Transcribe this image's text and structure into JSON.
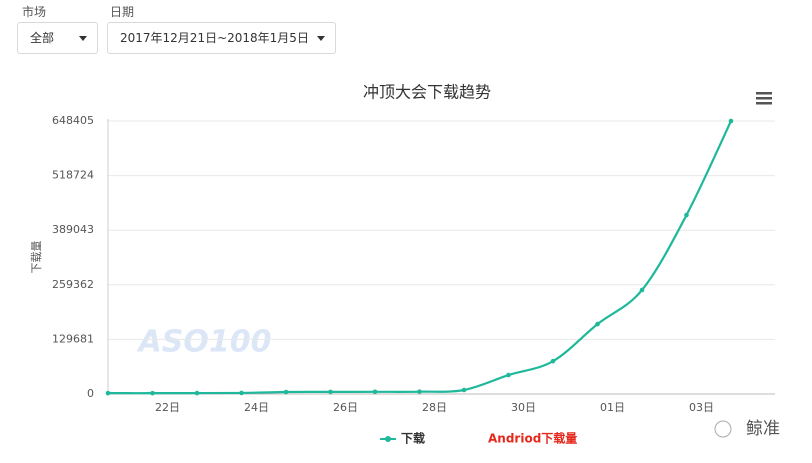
{
  "filters": {
    "market_label": "市场",
    "market_value": "全部",
    "date_label": "日期",
    "date_value": "2017年12月21日~2018年1月5日"
  },
  "chart_data": {
    "type": "line",
    "title": "冲顶大会下载趋势",
    "y_label": "下载量",
    "categories": [
      null,
      "22日",
      null,
      "24日",
      null,
      "26日",
      null,
      "28日",
      null,
      "30日",
      null,
      "01日",
      null,
      "03日",
      null
    ],
    "series": [
      {
        "name": "下载",
        "color": "#1fb89a",
        "values": [
          2000,
          2000,
          2200,
          2500,
          4700,
          5000,
          5200,
          5500,
          9500,
          45000,
          78000,
          166000,
          247000,
          425000,
          648405
        ]
      }
    ],
    "annotations": [
      "Andriod下载量"
    ],
    "ylim": [
      0,
      648405
    ],
    "yticks": [
      0,
      129681,
      259362,
      389043,
      518724,
      648405
    ],
    "grid": true
  },
  "watermark": {
    "logo": "ASO100",
    "brand": "鲸准"
  }
}
